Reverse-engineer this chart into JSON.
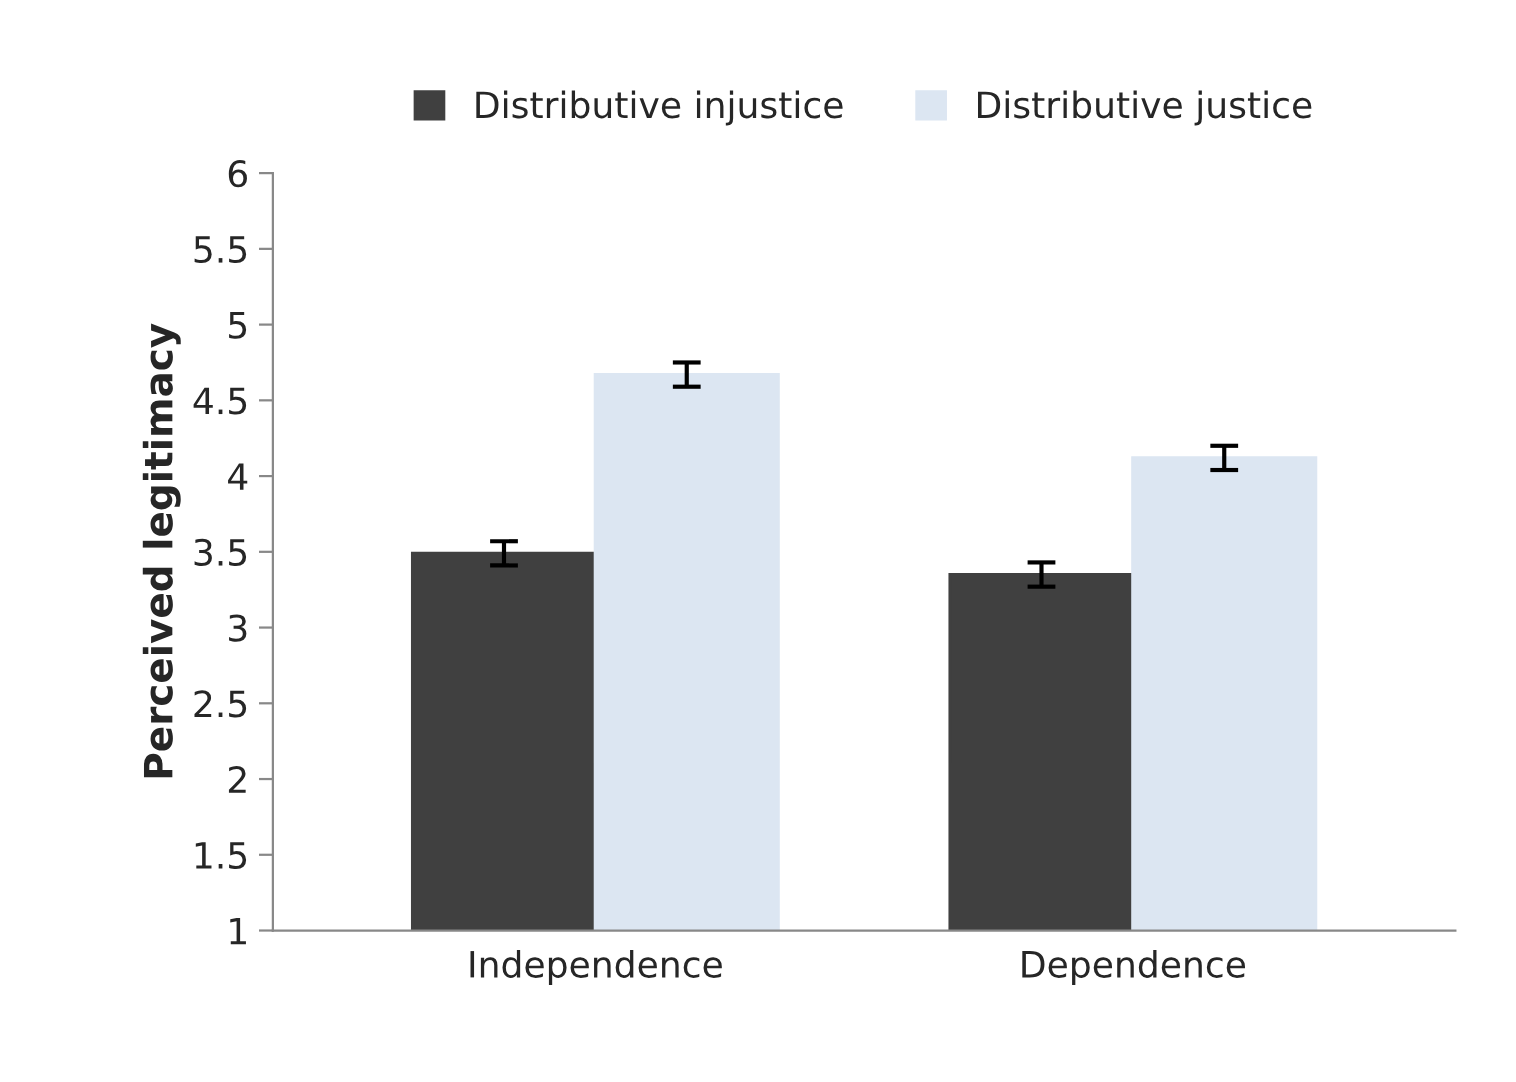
{
  "chart_data": {
    "type": "bar",
    "ylabel": "Perceived legitimacy",
    "categories": [
      "Independence",
      "Dependence"
    ],
    "series": [
      {
        "name": "Distributive injustice",
        "color": "#404040",
        "values": [
          3.49,
          3.35
        ],
        "errors": [
          0.08,
          0.08
        ]
      },
      {
        "name": "Distributive justice",
        "color": "#dce6f2",
        "values": [
          4.67,
          4.12
        ],
        "errors": [
          0.08,
          0.08
        ]
      }
    ],
    "ylim": [
      1,
      6
    ],
    "yticks": [
      1,
      1.5,
      2,
      2.5,
      3,
      3.5,
      4,
      4.5,
      5,
      5.5,
      6
    ],
    "grid": false,
    "legend": "top"
  }
}
